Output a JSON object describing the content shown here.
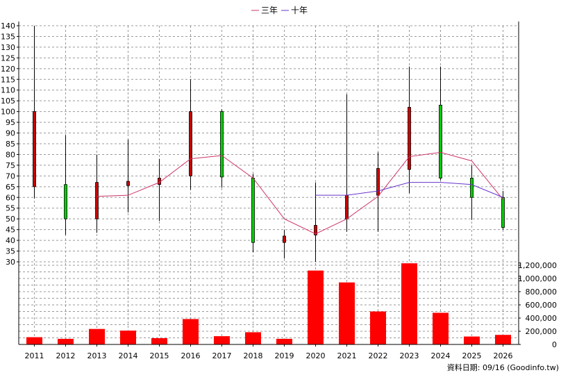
{
  "chart_data": {
    "type": "candlestick+bar",
    "categories": [
      "2011",
      "2012",
      "2013",
      "2014",
      "2015",
      "2016",
      "2017",
      "2018",
      "2019",
      "2020",
      "2021",
      "2022",
      "2023",
      "2024",
      "2025",
      "2026"
    ],
    "price_axis": {
      "ylim": [
        30,
        140
      ],
      "ticks": [
        30,
        35,
        40,
        45,
        50,
        55,
        60,
        65,
        70,
        75,
        80,
        85,
        90,
        95,
        100,
        105,
        110,
        115,
        120,
        125,
        130,
        135,
        140
      ]
    },
    "volume_axis": {
      "ylim": [
        0,
        1200000
      ],
      "ticks": [
        0,
        200000,
        400000,
        600000,
        800000,
        1000000,
        1200000
      ],
      "tick_labels": [
        "0",
        "200,000",
        "400,000",
        "600,000",
        "800,000",
        "1,000,000",
        "1,200,000"
      ]
    },
    "candles": [
      {
        "open": 65,
        "close": 100,
        "high": 140,
        "low": 59.5
      },
      {
        "open": 66,
        "close": 50,
        "high": 89,
        "low": 42.5
      },
      {
        "open": 50,
        "close": 67,
        "high": 80,
        "low": 43.5
      },
      {
        "open": 65.5,
        "close": 67.5,
        "high": 87,
        "low": 53
      },
      {
        "open": 66,
        "close": 69,
        "high": 78,
        "low": 49
      },
      {
        "open": 70,
        "close": 100,
        "high": 115,
        "low": 63.5
      },
      {
        "open": 100,
        "close": 69.5,
        "high": 101,
        "low": 64.5
      },
      {
        "open": 69,
        "close": 39,
        "high": 71,
        "low": 34.5
      },
      {
        "open": 39,
        "close": 42,
        "high": 45,
        "low": 31.5
      },
      {
        "open": 42.5,
        "close": 47,
        "high": 67,
        "low": 30
      },
      {
        "open": 50,
        "close": 61,
        "high": 108,
        "low": 44
      },
      {
        "open": 61,
        "close": 73.5,
        "high": 81,
        "low": 44
      },
      {
        "open": 73,
        "close": 102,
        "high": 121,
        "low": 62
      },
      {
        "open": 103,
        "close": 69,
        "high": 121,
        "low": 68
      },
      {
        "open": 69,
        "close": 60,
        "high": 75,
        "low": 49.5
      },
      {
        "open": 60,
        "close": 46,
        "high": 63,
        "low": 45
      }
    ],
    "volume": [
      110000,
      85000,
      235000,
      210000,
      95000,
      385000,
      125000,
      185000,
      85000,
      1120000,
      940000,
      500000,
      1230000,
      480000,
      120000,
      145000
    ],
    "series": [
      {
        "name": "三年",
        "color": "#cc3366",
        "values": [
          null,
          null,
          60.5,
          61,
          67,
          78,
          79.5,
          69,
          50,
          43,
          50,
          60.5,
          79,
          81,
          77,
          59
        ]
      },
      {
        "name": "十年",
        "color": "#6633cc",
        "values": [
          null,
          null,
          null,
          null,
          null,
          null,
          null,
          null,
          null,
          61,
          61,
          63,
          67,
          67,
          66,
          60
        ]
      }
    ],
    "colors": {
      "up": "#cc0000",
      "down": "#00cc00",
      "volume": "#ff0000",
      "grid": "#999999",
      "axis": "#000000"
    },
    "legend": {
      "position": "top-center"
    },
    "grid": true,
    "source_text": "資料日期: 09/16 (Goodinfo.tw)"
  }
}
